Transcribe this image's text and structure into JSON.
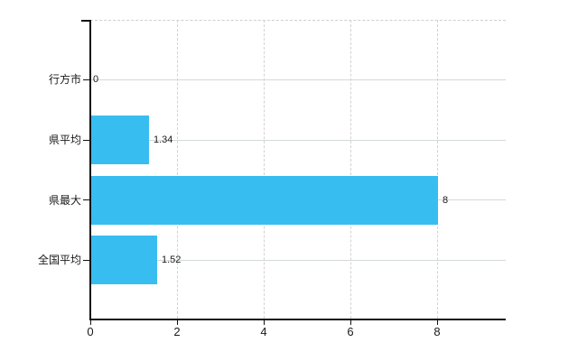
{
  "chart_data": {
    "type": "bar",
    "orientation": "horizontal",
    "title": "",
    "xlabel": "",
    "ylabel": "",
    "categories": [
      "行方市",
      "県平均",
      "県最大",
      "全国平均"
    ],
    "values": [
      0,
      1.34,
      8,
      1.52
    ],
    "value_labels": [
      "0",
      "1.34",
      "8",
      "1.52"
    ],
    "x_ticks": [
      0,
      2,
      4,
      6,
      8
    ],
    "x_tick_labels": [
      "0",
      "2",
      "4",
      "6",
      "8"
    ],
    "xlim": [
      0,
      9.58
    ],
    "grid": true,
    "legend": false,
    "colors": {
      "bar": "#38bdf1",
      "axis": "#111111",
      "horizontal_grid": "#d2dad2",
      "vertical_grid": "#d6cfd6",
      "top_border": "#d0cdd2",
      "text": "#1a1a1a",
      "background": "#ffffff"
    }
  }
}
